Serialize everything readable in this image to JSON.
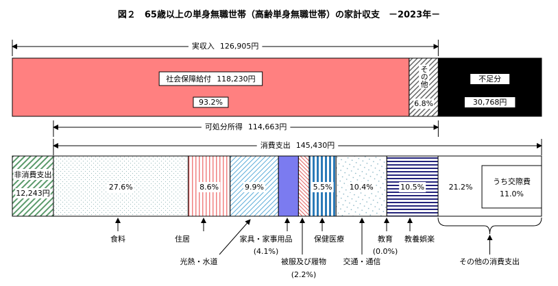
{
  "chart_data": {
    "type": "budget-bars",
    "title": "図２　65歳以上の単身無職世帯（高齢単身無職世帯）の家計収支　－2023年－",
    "income": {
      "name": "実収入",
      "value": 126905,
      "value_label": "126,905円"
    },
    "disposable": {
      "name": "可処分所得",
      "value": 114663,
      "value_label": "114,663円"
    },
    "spending": {
      "name": "消費支出",
      "value": 145430,
      "value_label": "145,430円"
    },
    "income_parts": [
      {
        "name": "社会保障給付",
        "value": 118230,
        "value_label": "118,230円",
        "share": 93.2,
        "share_label": "93.2%",
        "color": "#ff8080"
      },
      {
        "name": "その他",
        "share": 6.8,
        "share_label": "6.8%"
      }
    ],
    "deficit": {
      "name": "不足分",
      "value": 30768,
      "value_label": "30,768円",
      "color": "#000000"
    },
    "non_consumption": {
      "name": "非消費支出",
      "value": 12243,
      "value_label": "12,243円"
    },
    "categories": [
      {
        "name": "食料",
        "share": 27.6,
        "share_label": "27.6%"
      },
      {
        "name": "住居",
        "share": 8.6,
        "share_label": "8.6%"
      },
      {
        "name": "光熱・水道",
        "share": 9.9,
        "share_label": "9.9%"
      },
      {
        "name": "家具・家事用品",
        "share": 4.1,
        "share_label": "(4.1%)"
      },
      {
        "name": "被服及び履物",
        "share": 2.2,
        "share_label": "(2.2%)"
      },
      {
        "name": "保健医療",
        "share": 5.5,
        "share_label": "5.5%"
      },
      {
        "name": "交通・通信",
        "share": 10.4,
        "share_label": "10.4%"
      },
      {
        "name": "教育",
        "share": 0.0,
        "share_label": "(0.0%)"
      },
      {
        "name": "教養娯楽",
        "share": 10.5,
        "share_label": "10.5%"
      },
      {
        "name": "その他の消費支出",
        "share": 21.2,
        "share_label": "21.2%"
      }
    ],
    "sub_item": {
      "name": "うち交際費",
      "share": 11.0,
      "share_label": "11.0%"
    }
  }
}
